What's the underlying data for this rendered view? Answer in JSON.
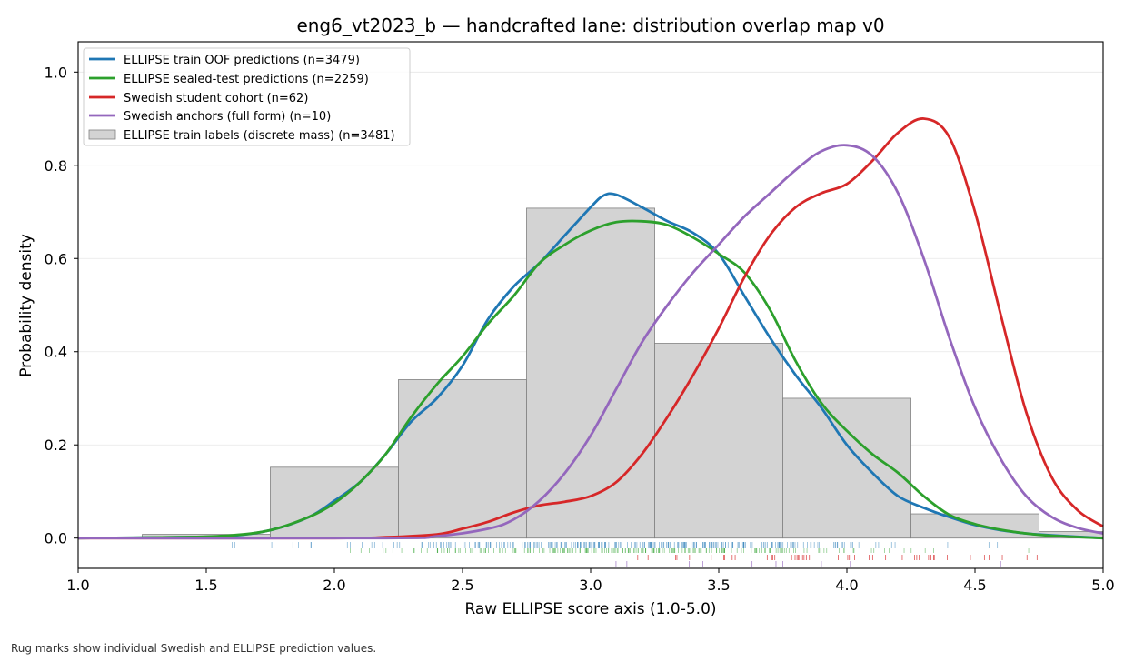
{
  "chart_data": {
    "type": "area",
    "title": "eng6_vt2023_b — handcrafted lane: distribution overlap map v0",
    "xlabel": "Raw ELLIPSE score axis (1.0-5.0)",
    "ylabel": "Probability density",
    "xlim": [
      1.0,
      5.0
    ],
    "ylim": [
      -0.065,
      1.065
    ],
    "xticks": [
      1.0,
      1.5,
      2.0,
      2.5,
      3.0,
      3.5,
      4.0,
      4.5,
      5.0
    ],
    "xtick_labels": [
      "1.0",
      "1.5",
      "2.0",
      "2.5",
      "3.0",
      "3.5",
      "4.0",
      "4.5",
      "5.0"
    ],
    "yticks": [
      0.0,
      0.2,
      0.4,
      0.6,
      0.8,
      1.0
    ],
    "ytick_labels": [
      "0.0",
      "0.2",
      "0.4",
      "0.6",
      "0.8",
      "1.0"
    ],
    "grid": "horizontal",
    "legend_position": "top-left",
    "histogram": {
      "name": "ELLIPSE train labels (discrete mass) (n=3481)",
      "color": "#d3d3d3",
      "edge_color": "#808080",
      "bins": [
        {
          "x0": 1.25,
          "x1": 1.75,
          "value": 0.008
        },
        {
          "x0": 1.75,
          "x1": 2.25,
          "value": 0.152
        },
        {
          "x0": 2.25,
          "x1": 2.75,
          "value": 0.34
        },
        {
          "x0": 2.75,
          "x1": 3.25,
          "value": 0.708
        },
        {
          "x0": 3.25,
          "x1": 3.75,
          "value": 0.418
        },
        {
          "x0": 3.75,
          "x1": 4.25,
          "value": 0.3
        },
        {
          "x0": 4.25,
          "x1": 4.75,
          "value": 0.052
        },
        {
          "x0": 4.75,
          "x1": 5.0,
          "value": 0.014
        }
      ]
    },
    "series": [
      {
        "name": "ELLIPSE train OOF predictions (n=3479)",
        "color": "#1f77b4",
        "points": [
          [
            1.0,
            0.0
          ],
          [
            1.4,
            0.002
          ],
          [
            1.6,
            0.005
          ],
          [
            1.75,
            0.017
          ],
          [
            1.9,
            0.045
          ],
          [
            2.0,
            0.08
          ],
          [
            2.1,
            0.12
          ],
          [
            2.2,
            0.18
          ],
          [
            2.3,
            0.25
          ],
          [
            2.4,
            0.3
          ],
          [
            2.5,
            0.37
          ],
          [
            2.6,
            0.47
          ],
          [
            2.7,
            0.54
          ],
          [
            2.8,
            0.59
          ],
          [
            2.9,
            0.65
          ],
          [
            3.0,
            0.71
          ],
          [
            3.05,
            0.735
          ],
          [
            3.1,
            0.737
          ],
          [
            3.2,
            0.71
          ],
          [
            3.3,
            0.68
          ],
          [
            3.4,
            0.655
          ],
          [
            3.5,
            0.61
          ],
          [
            3.6,
            0.52
          ],
          [
            3.7,
            0.43
          ],
          [
            3.8,
            0.35
          ],
          [
            3.9,
            0.28
          ],
          [
            4.0,
            0.2
          ],
          [
            4.1,
            0.14
          ],
          [
            4.2,
            0.09
          ],
          [
            4.3,
            0.065
          ],
          [
            4.4,
            0.045
          ],
          [
            4.5,
            0.028
          ],
          [
            4.6,
            0.017
          ],
          [
            4.7,
            0.01
          ],
          [
            4.8,
            0.006
          ],
          [
            5.0,
            0.0
          ]
        ]
      },
      {
        "name": "ELLIPSE sealed-test predictions (n=2259)",
        "color": "#2ca02c",
        "points": [
          [
            1.0,
            0.0
          ],
          [
            1.4,
            0.002
          ],
          [
            1.6,
            0.006
          ],
          [
            1.75,
            0.017
          ],
          [
            1.9,
            0.045
          ],
          [
            2.0,
            0.075
          ],
          [
            2.1,
            0.12
          ],
          [
            2.2,
            0.18
          ],
          [
            2.3,
            0.26
          ],
          [
            2.4,
            0.33
          ],
          [
            2.5,
            0.39
          ],
          [
            2.6,
            0.46
          ],
          [
            2.7,
            0.52
          ],
          [
            2.8,
            0.59
          ],
          [
            2.9,
            0.63
          ],
          [
            3.0,
            0.66
          ],
          [
            3.1,
            0.678
          ],
          [
            3.2,
            0.68
          ],
          [
            3.3,
            0.672
          ],
          [
            3.4,
            0.645
          ],
          [
            3.5,
            0.61
          ],
          [
            3.6,
            0.57
          ],
          [
            3.7,
            0.49
          ],
          [
            3.8,
            0.38
          ],
          [
            3.9,
            0.29
          ],
          [
            4.0,
            0.23
          ],
          [
            4.1,
            0.18
          ],
          [
            4.2,
            0.14
          ],
          [
            4.3,
            0.09
          ],
          [
            4.4,
            0.05
          ],
          [
            4.5,
            0.03
          ],
          [
            4.6,
            0.018
          ],
          [
            4.7,
            0.01
          ],
          [
            4.8,
            0.005
          ],
          [
            5.0,
            0.0
          ]
        ]
      },
      {
        "name": "Swedish student cohort (n=62)",
        "color": "#d62728",
        "points": [
          [
            1.0,
            0.0
          ],
          [
            2.0,
            0.0
          ],
          [
            2.2,
            0.002
          ],
          [
            2.4,
            0.008
          ],
          [
            2.5,
            0.02
          ],
          [
            2.6,
            0.035
          ],
          [
            2.7,
            0.055
          ],
          [
            2.8,
            0.07
          ],
          [
            2.9,
            0.078
          ],
          [
            3.0,
            0.09
          ],
          [
            3.1,
            0.12
          ],
          [
            3.2,
            0.18
          ],
          [
            3.3,
            0.26
          ],
          [
            3.4,
            0.35
          ],
          [
            3.5,
            0.45
          ],
          [
            3.6,
            0.56
          ],
          [
            3.7,
            0.65
          ],
          [
            3.8,
            0.71
          ],
          [
            3.9,
            0.74
          ],
          [
            4.0,
            0.76
          ],
          [
            4.1,
            0.81
          ],
          [
            4.2,
            0.87
          ],
          [
            4.3,
            0.9
          ],
          [
            4.4,
            0.86
          ],
          [
            4.5,
            0.7
          ],
          [
            4.6,
            0.48
          ],
          [
            4.7,
            0.27
          ],
          [
            4.8,
            0.13
          ],
          [
            4.9,
            0.06
          ],
          [
            5.0,
            0.025
          ]
        ]
      },
      {
        "name": "Swedish anchors (full form) (n=10)",
        "color": "#9467bd",
        "points": [
          [
            1.0,
            0.0
          ],
          [
            2.2,
            0.0
          ],
          [
            2.4,
            0.004
          ],
          [
            2.6,
            0.02
          ],
          [
            2.7,
            0.04
          ],
          [
            2.8,
            0.08
          ],
          [
            2.9,
            0.14
          ],
          [
            3.0,
            0.22
          ],
          [
            3.1,
            0.32
          ],
          [
            3.2,
            0.42
          ],
          [
            3.3,
            0.5
          ],
          [
            3.4,
            0.57
          ],
          [
            3.5,
            0.63
          ],
          [
            3.6,
            0.69
          ],
          [
            3.7,
            0.74
          ],
          [
            3.8,
            0.79
          ],
          [
            3.9,
            0.83
          ],
          [
            4.0,
            0.843
          ],
          [
            4.1,
            0.82
          ],
          [
            4.2,
            0.74
          ],
          [
            4.3,
            0.6
          ],
          [
            4.4,
            0.43
          ],
          [
            4.5,
            0.28
          ],
          [
            4.6,
            0.17
          ],
          [
            4.7,
            0.09
          ],
          [
            4.8,
            0.045
          ],
          [
            4.9,
            0.022
          ],
          [
            5.0,
            0.01
          ]
        ]
      }
    ],
    "rug_color_order": [
      "#1f77b4",
      "#2ca02c",
      "#d62728",
      "#9467bd"
    ]
  },
  "footnote": "Rug marks show individual Swedish and ELLIPSE prediction values."
}
